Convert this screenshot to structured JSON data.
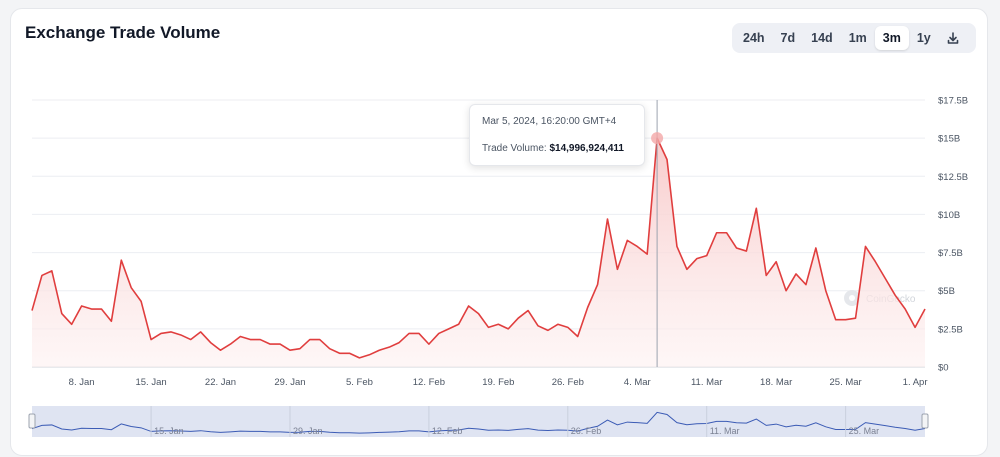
{
  "title": "Exchange Trade Volume",
  "range_options": [
    "24h",
    "7d",
    "14d",
    "1m",
    "3m",
    "1y"
  ],
  "active_range": "3m",
  "download_icon": "download-icon",
  "tooltip": {
    "date": "Mar 5, 2024, 16:20:00 GMT+4",
    "label": "Trade Volume:",
    "value": "$14,996,924,411"
  },
  "watermark": "CoinGecko",
  "colors": {
    "line": "#e03e3e",
    "area_top": "#f8c9c9",
    "marker": "#f4a8a8",
    "navigator_fill": "#dfe4f2",
    "navigator_line": "#3b5bb5"
  },
  "chart_data": {
    "type": "area",
    "title": "Exchange Trade Volume",
    "xlabel": "",
    "ylabel": "",
    "y_ticks": [
      "$0",
      "$2.5B",
      "$5B",
      "$7.5B",
      "$10B",
      "$12.5B",
      "$15B",
      "$17.5B"
    ],
    "ylim": [
      0,
      17.5
    ],
    "y_unit": "billion USD",
    "x_ticks": [
      "8. Jan",
      "15. Jan",
      "22. Jan",
      "29. Jan",
      "5. Feb",
      "12. Feb",
      "19. Feb",
      "26. Feb",
      "4. Mar",
      "11. Mar",
      "18. Mar",
      "25. Mar",
      "1. Apr"
    ],
    "navigator_ticks": [
      "15. Jan",
      "29. Jan",
      "12. Feb",
      "26. Feb",
      "11. Mar",
      "25. Mar"
    ],
    "grid": true,
    "series": [
      {
        "values": [
          3.7,
          6.0,
          6.3,
          3.5,
          2.8,
          4.0,
          3.8,
          3.8,
          3.0,
          7.0,
          5.2,
          4.3,
          1.8,
          2.2,
          2.3,
          2.1,
          1.8,
          2.3,
          1.6,
          1.1,
          1.5,
          2.0,
          1.8,
          1.8,
          1.5,
          1.5,
          1.1,
          1.2,
          1.8,
          1.8,
          1.2,
          0.9,
          0.9,
          0.6,
          0.8,
          1.1,
          1.3,
          1.6,
          2.2,
          2.2,
          1.5,
          2.2,
          2.5,
          2.8,
          4.0,
          3.5,
          2.6,
          2.8,
          2.5,
          3.2,
          3.7,
          2.7,
          2.4,
          2.8,
          2.6,
          2.0,
          3.9,
          5.4,
          9.7,
          6.4,
          8.3,
          7.9,
          7.4,
          15.0,
          13.6,
          7.9,
          6.4,
          7.1,
          7.3,
          8.8,
          8.8,
          7.8,
          7.6,
          10.4,
          6.0,
          6.9,
          5.0,
          6.1,
          5.4,
          7.8,
          5.0,
          3.1,
          3.1,
          3.2,
          7.9,
          6.9,
          5.8,
          4.7,
          3.8,
          2.6,
          3.8
        ]
      }
    ]
  }
}
